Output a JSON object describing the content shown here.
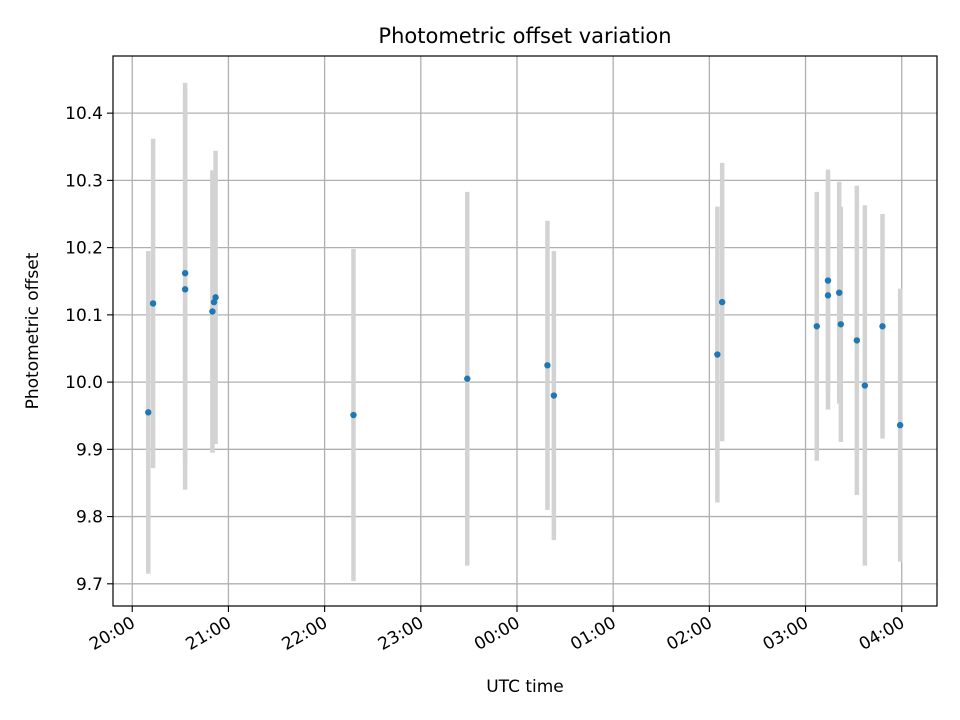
{
  "chart_data": {
    "type": "scatter",
    "title": "Photometric offset variation",
    "xlabel": "UTC time",
    "ylabel": "Photometric offset",
    "x_axis": "time",
    "x_ticks": [
      "20:00",
      "21:00",
      "22:00",
      "23:00",
      "00:00",
      "01:00",
      "02:00",
      "03:00",
      "04:00"
    ],
    "y_ticks": [
      9.7,
      9.8,
      9.9,
      10.0,
      10.1,
      10.2,
      10.3,
      10.4
    ],
    "xlim": [
      "19:48",
      "04:22"
    ],
    "ylim": [
      9.667,
      10.485
    ],
    "grid": true,
    "colors": {
      "point": "#1f77b4",
      "errorbar": "#d3d3d3",
      "grid": "#b0b0b0"
    },
    "points": [
      {
        "t": "20:10",
        "y": 9.955,
        "err": 0.24
      },
      {
        "t": "20:13",
        "y": 10.117,
        "err": 0.245
      },
      {
        "t": "20:33",
        "y": 10.162,
        "err": 0.283
      },
      {
        "t": "20:33",
        "y": 10.138,
        "err": 0.298
      },
      {
        "t": "20:50",
        "y": 10.105,
        "err": 0.21
      },
      {
        "t": "20:51",
        "y": 10.119,
        "err": 0.195
      },
      {
        "t": "20:52",
        "y": 10.126,
        "err": 0.218
      },
      {
        "t": "22:18",
        "y": 9.951,
        "err": 0.247
      },
      {
        "t": "23:29",
        "y": 10.005,
        "err": 0.278
      },
      {
        "t": "00:19",
        "y": 10.025,
        "err": 0.215
      },
      {
        "t": "00:23",
        "y": 9.98,
        "err": 0.215
      },
      {
        "t": "02:05",
        "y": 10.041,
        "err": 0.22
      },
      {
        "t": "02:08",
        "y": 10.119,
        "err": 0.207
      },
      {
        "t": "03:07",
        "y": 10.083,
        "err": 0.2
      },
      {
        "t": "03:14",
        "y": 10.151,
        "err": 0.165
      },
      {
        "t": "03:14",
        "y": 10.129,
        "err": 0.17
      },
      {
        "t": "03:21",
        "y": 10.133,
        "err": 0.165
      },
      {
        "t": "03:22",
        "y": 10.086,
        "err": 0.175
      },
      {
        "t": "03:32",
        "y": 10.062,
        "err": 0.23
      },
      {
        "t": "03:37",
        "y": 9.995,
        "err": 0.268
      },
      {
        "t": "03:48",
        "y": 10.083,
        "err": 0.167
      },
      {
        "t": "03:59",
        "y": 9.936,
        "err": 0.203
      }
    ]
  }
}
